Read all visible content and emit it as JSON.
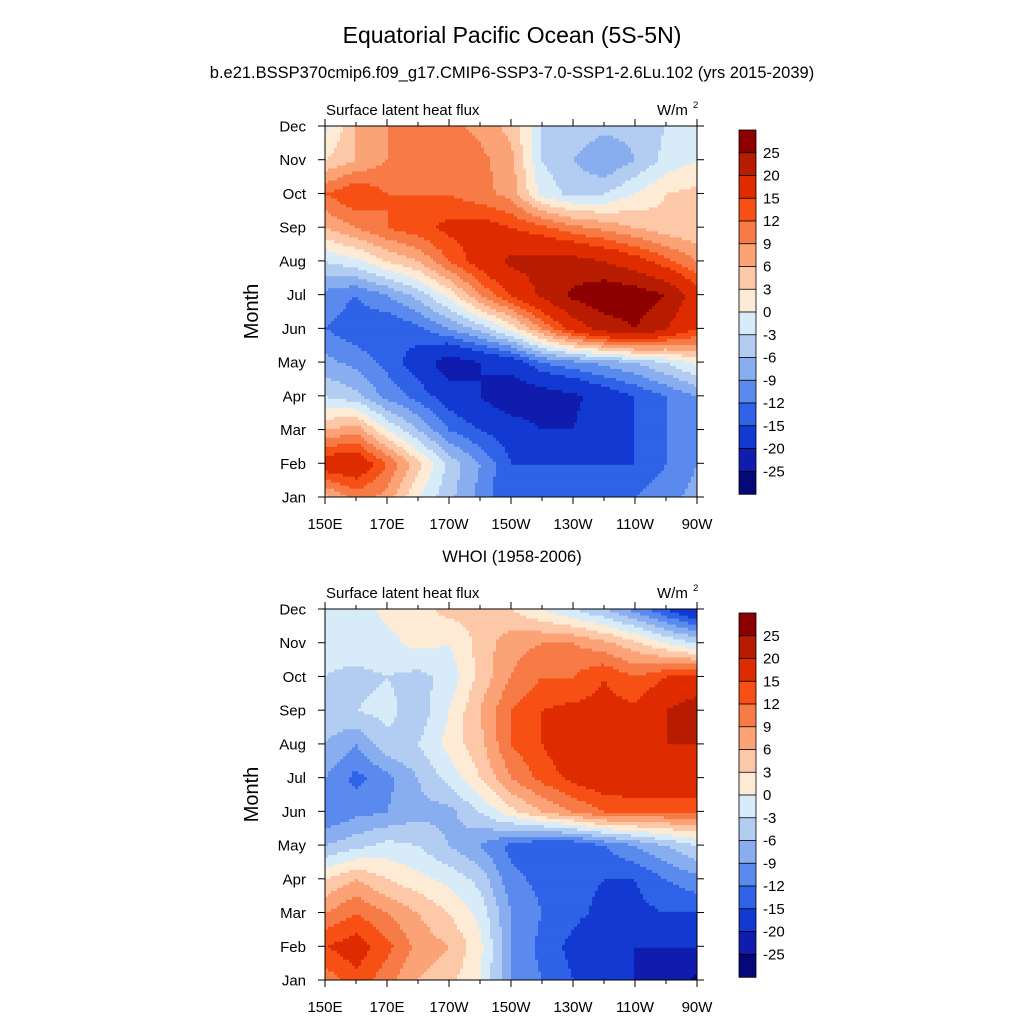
{
  "figure": {
    "title": "Equatorial Pacific Ocean (5S-5N)",
    "subtitle": "b.e21.BSSP370cmip6.f09_g17.CMIP6-SSP3-7.0-SSP1-2.6Lu.102 (yrs 2015-2039)",
    "panel2_title": "WHOI (1958-2006)"
  },
  "colorbar": {
    "labels": [
      "25",
      "20",
      "15",
      "12",
      "9",
      "6",
      "3",
      "0",
      "-3",
      "-6",
      "-9",
      "-12",
      "-15",
      "-20",
      "-25"
    ],
    "colors_top_to_bottom": [
      "#8c0000",
      "#b81c00",
      "#de2c00",
      "#f65014",
      "#f77b47",
      "#fba276",
      "#fdc8a8",
      "#fdebd5",
      "#d8ebf8",
      "#b3cdf2",
      "#89aef0",
      "#5a8aed",
      "#2f62e7",
      "#1239d1",
      "#0f1cae",
      "#06087a"
    ]
  },
  "chart_data": [
    {
      "type": "heatmap",
      "panel": "model",
      "left_label": "Surface latent heat flux",
      "units_label": "W/m",
      "units_exponent": "2",
      "ylabel": "Month",
      "x_tick_labels": [
        "150E",
        "170E",
        "170W",
        "150W",
        "130W",
        "110W",
        "90W"
      ],
      "y_tick_labels": [
        "Jan",
        "Feb",
        "Mar",
        "Apr",
        "May",
        "Jun",
        "Jul",
        "Aug",
        "Sep",
        "Oct",
        "Nov",
        "Dec"
      ],
      "x_lon": [
        150,
        160,
        170,
        180,
        190,
        200,
        210,
        220,
        230,
        240,
        250,
        260,
        270
      ],
      "values": [
        [
          5,
          10,
          8,
          0,
          -5,
          -10,
          -15,
          -12,
          -12,
          -12,
          -12,
          -10,
          -8
        ],
        [
          18,
          19,
          12,
          4,
          -4,
          -9,
          -15,
          -15,
          -15,
          -15,
          -15,
          -12,
          -9
        ],
        [
          6,
          8,
          0,
          -6,
          -12,
          -15,
          -17,
          -20,
          -20,
          -17,
          -15,
          -12,
          -10
        ],
        [
          -3,
          -5,
          -10,
          -13,
          -17,
          -20,
          -24,
          -23,
          -21,
          -18,
          -15,
          -12,
          -9
        ],
        [
          -8,
          -10,
          -13,
          -17,
          -23,
          -20,
          -18,
          -12,
          -10,
          -8,
          -6,
          -3,
          1
        ],
        [
          -12,
          -14,
          -15,
          -13,
          -9,
          -5,
          1,
          9,
          17,
          22,
          25,
          20,
          15
        ],
        [
          -10,
          -12,
          -9,
          -5,
          1,
          9,
          15,
          21,
          26,
          29,
          28,
          25,
          17
        ],
        [
          -3,
          -1,
          3,
          6,
          12,
          17,
          21,
          22,
          22,
          20,
          17,
          13,
          9
        ],
        [
          6,
          9,
          12,
          14,
          16,
          17,
          15,
          13,
          10,
          8,
          6,
          4,
          3
        ],
        [
          12,
          15,
          12,
          12,
          12,
          10,
          8,
          -1,
          -4,
          -3,
          0,
          3,
          4
        ],
        [
          3,
          6,
          9,
          11,
          12,
          10,
          7,
          -3,
          -6,
          -9,
          -6,
          -2,
          0
        ],
        [
          -1,
          6,
          9,
          10,
          10,
          8,
          5,
          -3,
          -4,
          -5,
          -5,
          -3,
          -1
        ]
      ]
    },
    {
      "type": "heatmap",
      "panel": "observations",
      "left_label": "Surface latent heat flux",
      "units_label": "W/m",
      "units_exponent": "2",
      "ylabel": "Month",
      "x_tick_labels": [
        "150E",
        "170E",
        "170W",
        "150W",
        "130W",
        "110W",
        "90W"
      ],
      "y_tick_labels": [
        "Jan",
        "Feb",
        "Mar",
        "Apr",
        "May",
        "Jun",
        "Jul",
        "Aug",
        "Sep",
        "Oct",
        "Nov",
        "Dec"
      ],
      "x_lon": [
        150,
        160,
        170,
        180,
        190,
        200,
        210,
        220,
        230,
        240,
        250,
        260,
        270
      ],
      "values": [
        [
          10,
          14,
          10,
          6,
          4,
          0,
          -9,
          -12,
          -15,
          -18,
          -20,
          -22,
          -26
        ],
        [
          15,
          17,
          13,
          8,
          6,
          1,
          -9,
          -13,
          -16,
          -20,
          -20,
          -20,
          -20
        ],
        [
          9,
          12,
          9,
          6,
          3,
          -1,
          -9,
          -12,
          -14,
          -16,
          -16,
          -15,
          -15
        ],
        [
          3,
          6,
          3,
          1,
          -1,
          -4,
          -11,
          -13,
          -14,
          -15,
          -15,
          -12,
          -10
        ],
        [
          -6,
          -4,
          -2,
          -3,
          -6,
          -9,
          -13,
          -15,
          -15,
          -12,
          -9,
          -6,
          -3
        ],
        [
          -12,
          -10,
          -9,
          -7,
          -7,
          -3,
          2,
          6,
          9,
          12,
          12,
          12,
          12
        ],
        [
          -9,
          -13,
          -10,
          -6,
          -2,
          3,
          9,
          13,
          16,
          18,
          19,
          19,
          20
        ],
        [
          -6,
          -9,
          -4,
          -3,
          1,
          5,
          12,
          15,
          18,
          20,
          16,
          20,
          20
        ],
        [
          -4,
          -3,
          -2,
          -5,
          0,
          6,
          12,
          15,
          16,
          16,
          16,
          20,
          23
        ],
        [
          -3,
          -4,
          -3,
          -4,
          -2,
          4,
          9,
          12,
          12,
          15,
          12,
          15,
          16
        ],
        [
          -2,
          -1,
          -1,
          1,
          0,
          4,
          8,
          9,
          9,
          7,
          4,
          0,
          -3
        ],
        [
          0,
          -2,
          1,
          2,
          4,
          4,
          3,
          0,
          -3,
          -6,
          -10,
          -15,
          -20
        ]
      ]
    }
  ]
}
